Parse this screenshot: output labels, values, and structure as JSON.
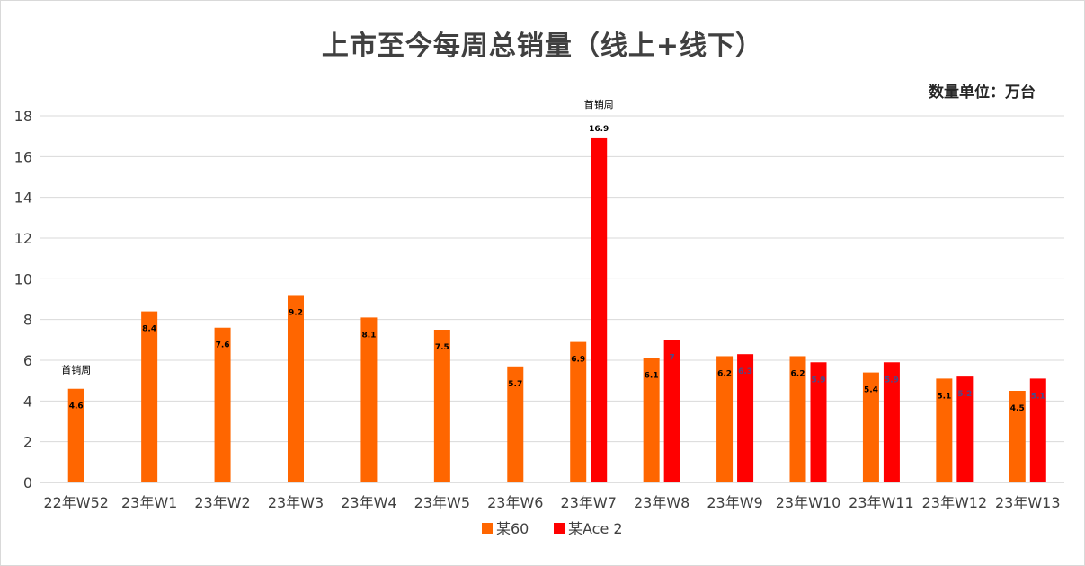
{
  "chart_data": {
    "type": "bar",
    "title": "上市至今每周总销量（线上+线下）",
    "unit_note": "数量单位：万台",
    "categories": [
      "22年W52",
      "23年W1",
      "23年W2",
      "23年W3",
      "23年W4",
      "23年W5",
      "23年W6",
      "23年W7",
      "23年W8",
      "23年W9",
      "23年W10",
      "23年W11",
      "23年W12",
      "23年W13"
    ],
    "series": [
      {
        "name": "某60",
        "color": "#ff6600",
        "values": [
          4.6,
          8.4,
          7.6,
          9.2,
          8.1,
          7.5,
          5.7,
          6.9,
          6.1,
          6.2,
          6.2,
          5.4,
          5.1,
          4.5
        ],
        "labels": [
          "4.6",
          "8.4",
          "7.6",
          "9.2",
          "8.1",
          "7.5",
          "5.7",
          "6.9",
          "6.1",
          "6.2",
          "6.2",
          "5.4",
          "5.1",
          "4.5"
        ]
      },
      {
        "name": "某Ace 2",
        "color": "#ff0000",
        "values": [
          null,
          null,
          null,
          null,
          null,
          null,
          null,
          16.9,
          7,
          6.3,
          5.9,
          5.9,
          5.2,
          5.1
        ],
        "labels": [
          "",
          "",
          "",
          "",
          "",
          "",
          "",
          "16.9",
          "7",
          "6.3",
          "5.9",
          "5.9",
          "5.2",
          "5.1"
        ]
      }
    ],
    "annotations": [
      {
        "text": "首销周",
        "category": "22年W52",
        "series": 0
      },
      {
        "text": "首销周",
        "category": "23年W7",
        "series": 1
      }
    ],
    "ylim": [
      0,
      18
    ],
    "yticks": [
      0,
      2,
      4,
      6,
      8,
      10,
      12,
      14,
      16,
      18
    ],
    "grid": true,
    "legend": "bottom-center"
  }
}
